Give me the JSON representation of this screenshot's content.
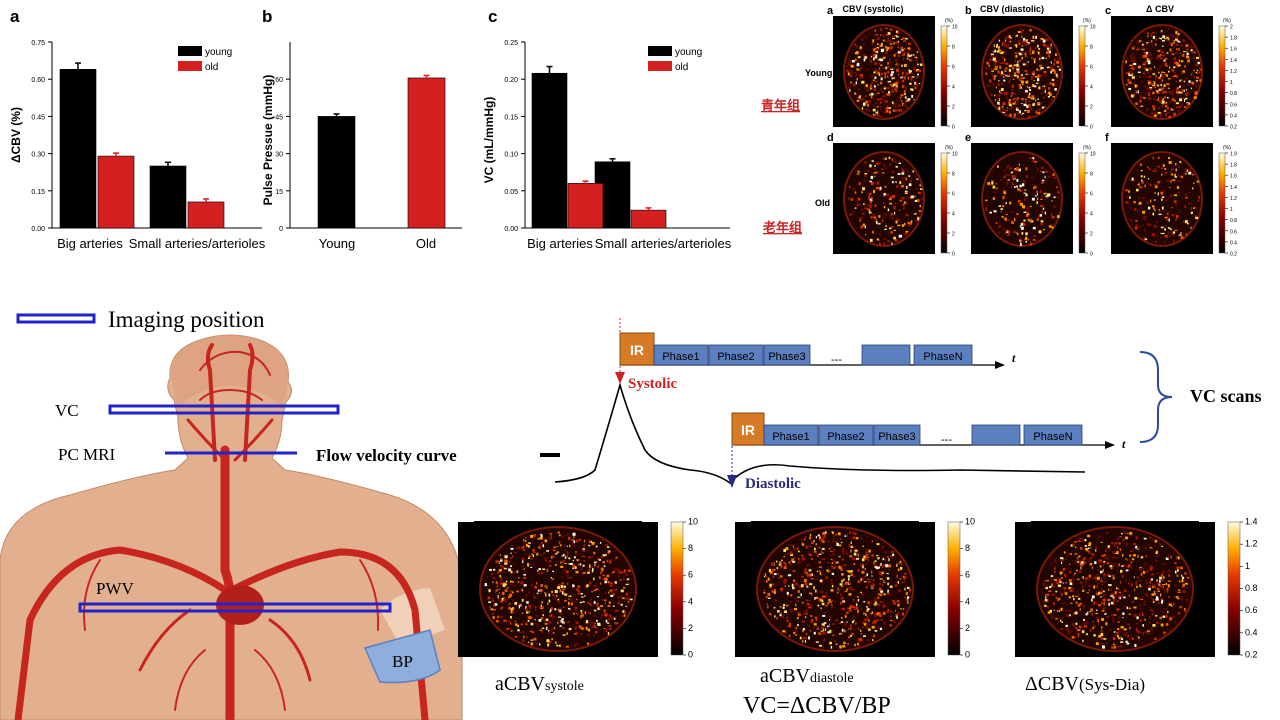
{
  "colors": {
    "young": "#000000",
    "old": "#d42020",
    "box": "#5b7fbf",
    "ir": "#d77a26",
    "line": "#2222cc",
    "red": "#cc2222"
  },
  "chart_data": [
    {
      "type": "bar",
      "panel": "a",
      "categories": [
        "Big arteries",
        "Small arteries/arterioles"
      ],
      "ylabel": "ΔCBV (%)",
      "ylim": [
        0,
        0.75
      ],
      "yticks": [
        "0.00",
        "0.15",
        "0.30",
        "0.45",
        "0.60",
        "0.75"
      ],
      "legend": "top-right",
      "series": [
        {
          "name": "young",
          "values": [
            0.64,
            0.25
          ],
          "errors": [
            0.025,
            0.015
          ]
        },
        {
          "name": "old",
          "values": [
            0.29,
            0.105
          ],
          "errors": [
            0.012,
            0.012
          ]
        }
      ]
    },
    {
      "type": "bar",
      "panel": "b",
      "categories": [
        "Young",
        "Old"
      ],
      "ylabel": "Pulse Pressue (mmHg)",
      "ylim": [
        0,
        75
      ],
      "yticks": [
        "0",
        "15",
        "30",
        "45",
        "60"
      ],
      "series": [
        {
          "name": "",
          "values": [
            45,
            60.5
          ],
          "errors": [
            1,
            1
          ],
          "colors": [
            "#000000",
            "#d42020"
          ]
        }
      ]
    },
    {
      "type": "bar",
      "panel": "c",
      "categories": [
        "Big arteries",
        "Small arteries/arterioles"
      ],
      "ylabel": "VC (mL/mmHg)",
      "ylim": [
        0,
        0.25
      ],
      "yticks": [
        "0.00",
        "0.05",
        "0.10",
        "0.15",
        "0.20",
        "0.25"
      ],
      "legend": "top-right",
      "series": [
        {
          "name": "young",
          "values": [
            0.208,
            0.089
          ],
          "errors": [
            0.009,
            0.004
          ]
        },
        {
          "name": "old",
          "values": [
            0.06,
            0.024
          ],
          "errors": [
            0.003,
            0.003
          ]
        }
      ]
    }
  ],
  "maps": {
    "col_titles": [
      "CBV (systolic)",
      "CBV (diastolic)",
      "Δ CBV"
    ],
    "row_labels": [
      "Young",
      "Old"
    ],
    "row_labels_cn": [
      "青年组",
      "老年组"
    ],
    "letters": [
      "a",
      "b",
      "c",
      "d",
      "e",
      "f"
    ],
    "unit": "(%)",
    "ticks_10": [
      "10",
      "8",
      "6",
      "4",
      "2",
      "0"
    ],
    "ticks_2": [
      "2",
      "1.8",
      "1.6",
      "1.4",
      "1.2",
      "1",
      "0.8",
      "0.6",
      "0.4",
      "0.2"
    ],
    "ticks_19": [
      "1.9",
      "1.8",
      "1.6",
      "1.4",
      "1.2",
      "1",
      "0.8",
      "0.6",
      "0.4",
      "0.2"
    ]
  },
  "diagram": {
    "legend_label": "Imaging position",
    "vc": "VC",
    "pc_mri": "PC MRI",
    "pwv": "PWV",
    "bp": "BP",
    "flow": "Flow velocity curve",
    "ir": "IR",
    "phases_top": [
      "Phase1",
      "Phase2",
      "Phase3",
      "---",
      "",
      "PhaseN"
    ],
    "phases_bottom": [
      "Phase1",
      "Phase2",
      "Phase3",
      "---",
      "",
      "PhaseN"
    ],
    "t": "t",
    "systolic": "Systolic",
    "diastolic": "Diastolic",
    "vc_scans": "VC scans"
  },
  "bottom": {
    "ticks_10": [
      "10",
      "8",
      "6",
      "4",
      "2",
      "0"
    ],
    "ticks_14": [
      "1.4",
      "1.2",
      "1",
      "0.8",
      "0.6",
      "0.4",
      "0.2"
    ],
    "label1_main": "aCBV",
    "label1_sub": "systole",
    "label2_main": "aCBV",
    "label2_sub": "diastole",
    "label3_main": "ΔCBV",
    "label3_sub": "(Sys-Dia)",
    "formula": "VC=ΔCBV/BP"
  },
  "panel_letters": [
    "a",
    "b",
    "c"
  ]
}
